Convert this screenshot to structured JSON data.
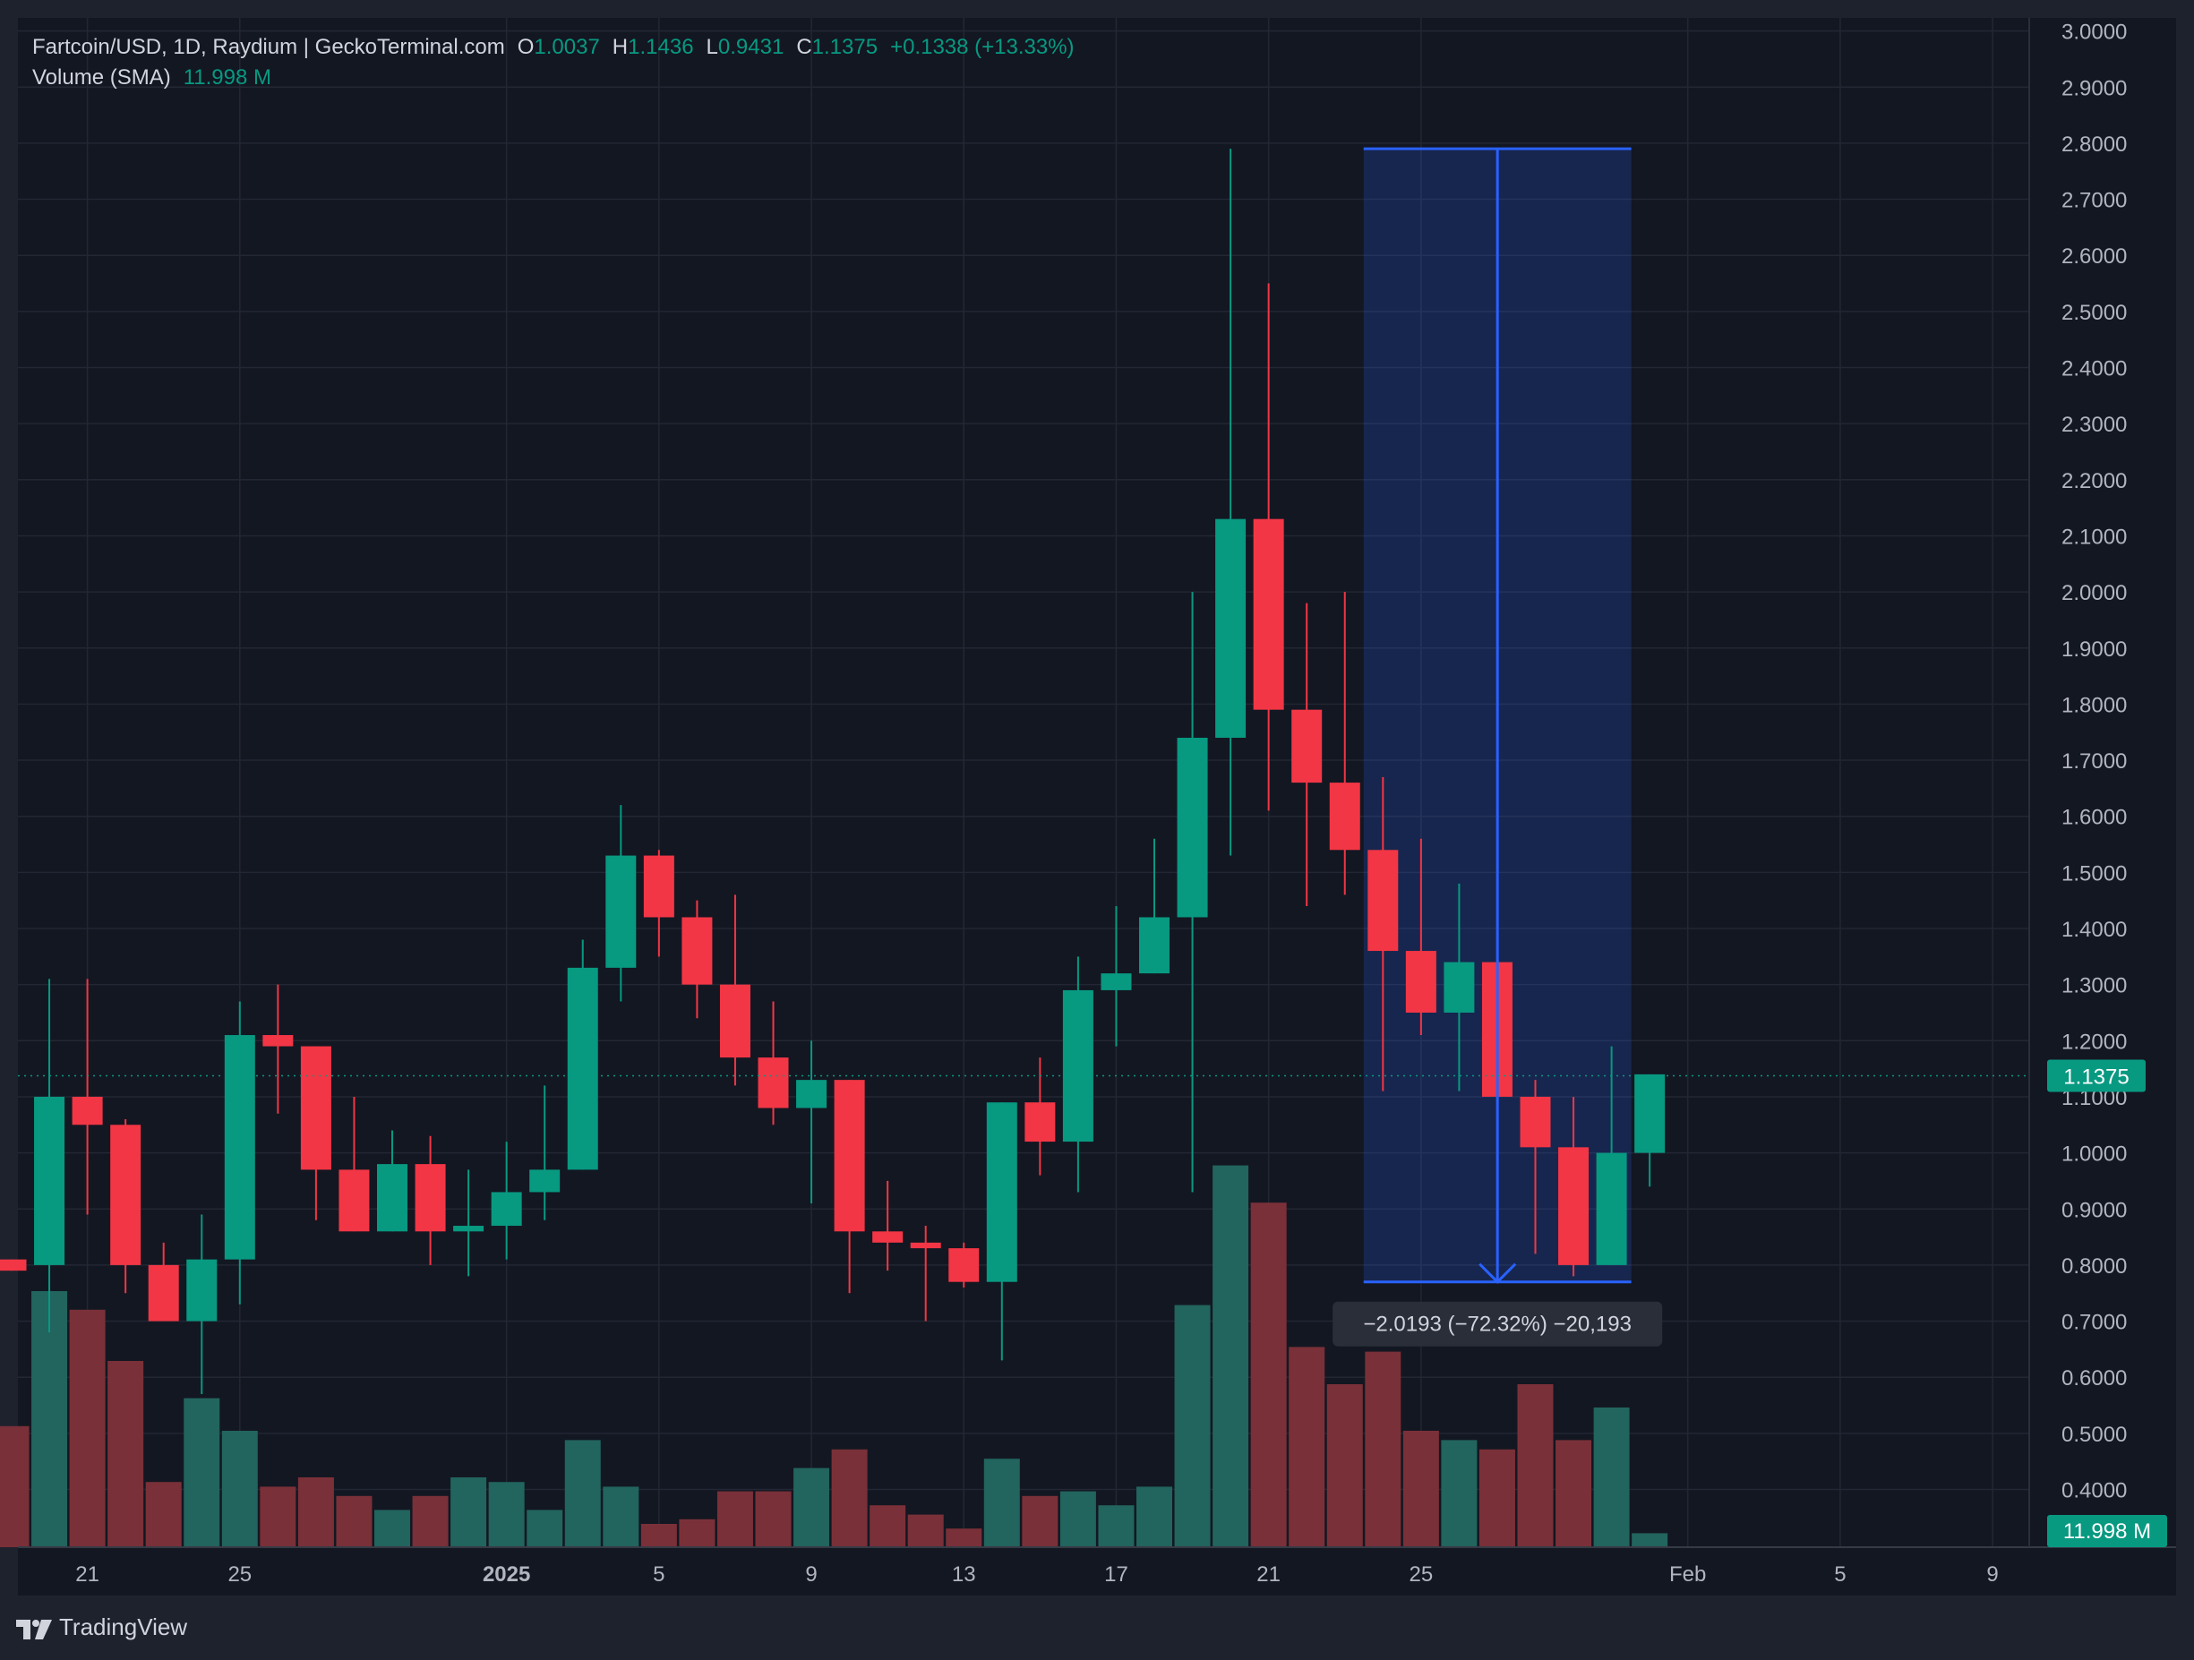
{
  "header": {
    "symbol": "Fartcoin/USD, 1D, Raydium | GeckoTerminal.com",
    "o_label": "O",
    "o_value": "1.0037",
    "h_label": "H",
    "h_value": "1.1436",
    "l_label": "L",
    "l_value": "0.9431",
    "c_label": "C",
    "c_value": "1.1375",
    "change": "+0.1338 (+13.33%)",
    "volume_label": "Volume (SMA)",
    "volume_value": "11.998 M"
  },
  "brand": {
    "name": "TradingView"
  },
  "colors": {
    "background": "#131722",
    "up": "#089981",
    "down": "#f23645",
    "volume_up": "#22645e",
    "volume_down": "#7a3038",
    "measure": "#2962ff",
    "text": "#d1d4dc"
  },
  "chart_data": {
    "type": "candlestick",
    "ylim": [
      0.4,
      3.03
    ],
    "y_ticks": [
      "3.0000",
      "2.9000",
      "2.8000",
      "2.7000",
      "2.6000",
      "2.5000",
      "2.4000",
      "2.3000",
      "2.2000",
      "2.1000",
      "2.0000",
      "1.9000",
      "1.8000",
      "1.7000",
      "1.6000",
      "1.5000",
      "1.4000",
      "1.3000",
      "1.2000",
      "1.1000",
      "1.0000",
      "0.9000",
      "0.8000",
      "0.7000",
      "0.6000",
      "0.5000",
      "0.4000"
    ],
    "x_ticks": [
      {
        "label": "21",
        "day": 2
      },
      {
        "label": "25",
        "day": 6
      },
      {
        "label": "2025",
        "day": 13,
        "bold": true
      },
      {
        "label": "5",
        "day": 17
      },
      {
        "label": "9",
        "day": 21
      },
      {
        "label": "13",
        "day": 25
      },
      {
        "label": "17",
        "day": 29
      },
      {
        "label": "21",
        "day": 33
      },
      {
        "label": "25",
        "day": 37
      },
      {
        "label": "Feb",
        "day": 44
      },
      {
        "label": "5",
        "day": 48
      },
      {
        "label": "9",
        "day": 52
      }
    ],
    "candles": [
      {
        "o": 0.81,
        "h": 0.81,
        "l": 0.79,
        "c": 0.79,
        "v": 0.26
      },
      {
        "o": 0.8,
        "h": 1.31,
        "l": 0.68,
        "c": 1.1,
        "v": 0.55
      },
      {
        "o": 1.1,
        "h": 1.31,
        "l": 0.89,
        "c": 1.05,
        "v": 0.51
      },
      {
        "o": 1.05,
        "h": 1.06,
        "l": 0.75,
        "c": 0.8,
        "v": 0.4
      },
      {
        "o": 0.8,
        "h": 0.84,
        "l": 0.7,
        "c": 0.7,
        "v": 0.14
      },
      {
        "o": 0.7,
        "h": 0.89,
        "l": 0.57,
        "c": 0.81,
        "v": 0.32
      },
      {
        "o": 0.81,
        "h": 1.27,
        "l": 0.73,
        "c": 1.21,
        "v": 0.25
      },
      {
        "o": 1.21,
        "h": 1.3,
        "l": 1.07,
        "c": 1.19,
        "v": 0.13
      },
      {
        "o": 1.19,
        "h": 1.19,
        "l": 0.88,
        "c": 0.97,
        "v": 0.15
      },
      {
        "o": 0.97,
        "h": 1.1,
        "l": 0.86,
        "c": 0.86,
        "v": 0.11
      },
      {
        "o": 0.86,
        "h": 1.04,
        "l": 0.86,
        "c": 0.98,
        "v": 0.08
      },
      {
        "o": 0.98,
        "h": 1.03,
        "l": 0.8,
        "c": 0.86,
        "v": 0.11
      },
      {
        "o": 0.86,
        "h": 0.97,
        "l": 0.78,
        "c": 0.87,
        "v": 0.15
      },
      {
        "o": 0.87,
        "h": 1.02,
        "l": 0.81,
        "c": 0.93,
        "v": 0.14
      },
      {
        "o": 0.93,
        "h": 1.12,
        "l": 0.88,
        "c": 0.97,
        "v": 0.08
      },
      {
        "o": 0.97,
        "h": 1.38,
        "l": 0.97,
        "c": 1.33,
        "v": 0.23
      },
      {
        "o": 1.33,
        "h": 1.62,
        "l": 1.27,
        "c": 1.53,
        "v": 0.13
      },
      {
        "o": 1.53,
        "h": 1.54,
        "l": 1.35,
        "c": 1.42,
        "v": 0.05
      },
      {
        "o": 1.42,
        "h": 1.45,
        "l": 1.24,
        "c": 1.3,
        "v": 0.06
      },
      {
        "o": 1.3,
        "h": 1.46,
        "l": 1.12,
        "c": 1.17,
        "v": 0.12
      },
      {
        "o": 1.17,
        "h": 1.27,
        "l": 1.05,
        "c": 1.08,
        "v": 0.12
      },
      {
        "o": 1.08,
        "h": 1.2,
        "l": 0.91,
        "c": 1.13,
        "v": 0.17
      },
      {
        "o": 1.13,
        "h": 1.13,
        "l": 0.75,
        "c": 0.86,
        "v": 0.21
      },
      {
        "o": 0.86,
        "h": 0.95,
        "l": 0.79,
        "c": 0.84,
        "v": 0.09
      },
      {
        "o": 0.84,
        "h": 0.87,
        "l": 0.7,
        "c": 0.83,
        "v": 0.07
      },
      {
        "o": 0.83,
        "h": 0.84,
        "l": 0.76,
        "c": 0.77,
        "v": 0.04
      },
      {
        "o": 0.77,
        "h": 1.09,
        "l": 0.63,
        "c": 1.09,
        "v": 0.19
      },
      {
        "o": 1.09,
        "h": 1.17,
        "l": 0.96,
        "c": 1.02,
        "v": 0.11
      },
      {
        "o": 1.02,
        "h": 1.35,
        "l": 0.93,
        "c": 1.29,
        "v": 0.12
      },
      {
        "o": 1.29,
        "h": 1.44,
        "l": 1.19,
        "c": 1.32,
        "v": 0.09
      },
      {
        "o": 1.32,
        "h": 1.56,
        "l": 1.32,
        "c": 1.42,
        "v": 0.13
      },
      {
        "o": 1.42,
        "h": 2.0,
        "l": 0.93,
        "c": 1.74,
        "v": 0.52
      },
      {
        "o": 1.74,
        "h": 2.79,
        "l": 1.53,
        "c": 2.13,
        "v": 0.82
      },
      {
        "o": 2.13,
        "h": 2.55,
        "l": 1.61,
        "c": 1.79,
        "v": 0.74
      },
      {
        "o": 1.79,
        "h": 1.98,
        "l": 1.44,
        "c": 1.66,
        "v": 0.43
      },
      {
        "o": 1.66,
        "h": 2.0,
        "l": 1.46,
        "c": 1.54,
        "v": 0.35
      },
      {
        "o": 1.54,
        "h": 1.67,
        "l": 1.11,
        "c": 1.36,
        "v": 0.42
      },
      {
        "o": 1.36,
        "h": 1.56,
        "l": 1.21,
        "c": 1.25,
        "v": 0.25
      },
      {
        "o": 1.25,
        "h": 1.48,
        "l": 1.11,
        "c": 1.34,
        "v": 0.23
      },
      {
        "o": 1.34,
        "h": 1.42,
        "l": 1.06,
        "c": 1.1,
        "v": 0.21
      },
      {
        "o": 1.1,
        "h": 1.13,
        "l": 0.82,
        "c": 1.01,
        "v": 0.35
      },
      {
        "o": 1.01,
        "h": 1.1,
        "l": 0.78,
        "c": 0.8,
        "v": 0.23
      },
      {
        "o": 0.8,
        "h": 1.19,
        "l": 0.8,
        "c": 1.0,
        "v": 0.3
      },
      {
        "o": 1.0,
        "h": 1.14,
        "l": 0.94,
        "c": 1.14,
        "v": 0.03
      }
    ],
    "last_price": {
      "value": 1.1375,
      "label": "1.1375"
    },
    "volume_badge": "11.998 M",
    "measure": {
      "from_day": 35,
      "to_day": 42,
      "top": 2.79,
      "bottom": 0.77,
      "label": "−2.0193 (−72.32%) −20,193"
    },
    "grid": true
  }
}
